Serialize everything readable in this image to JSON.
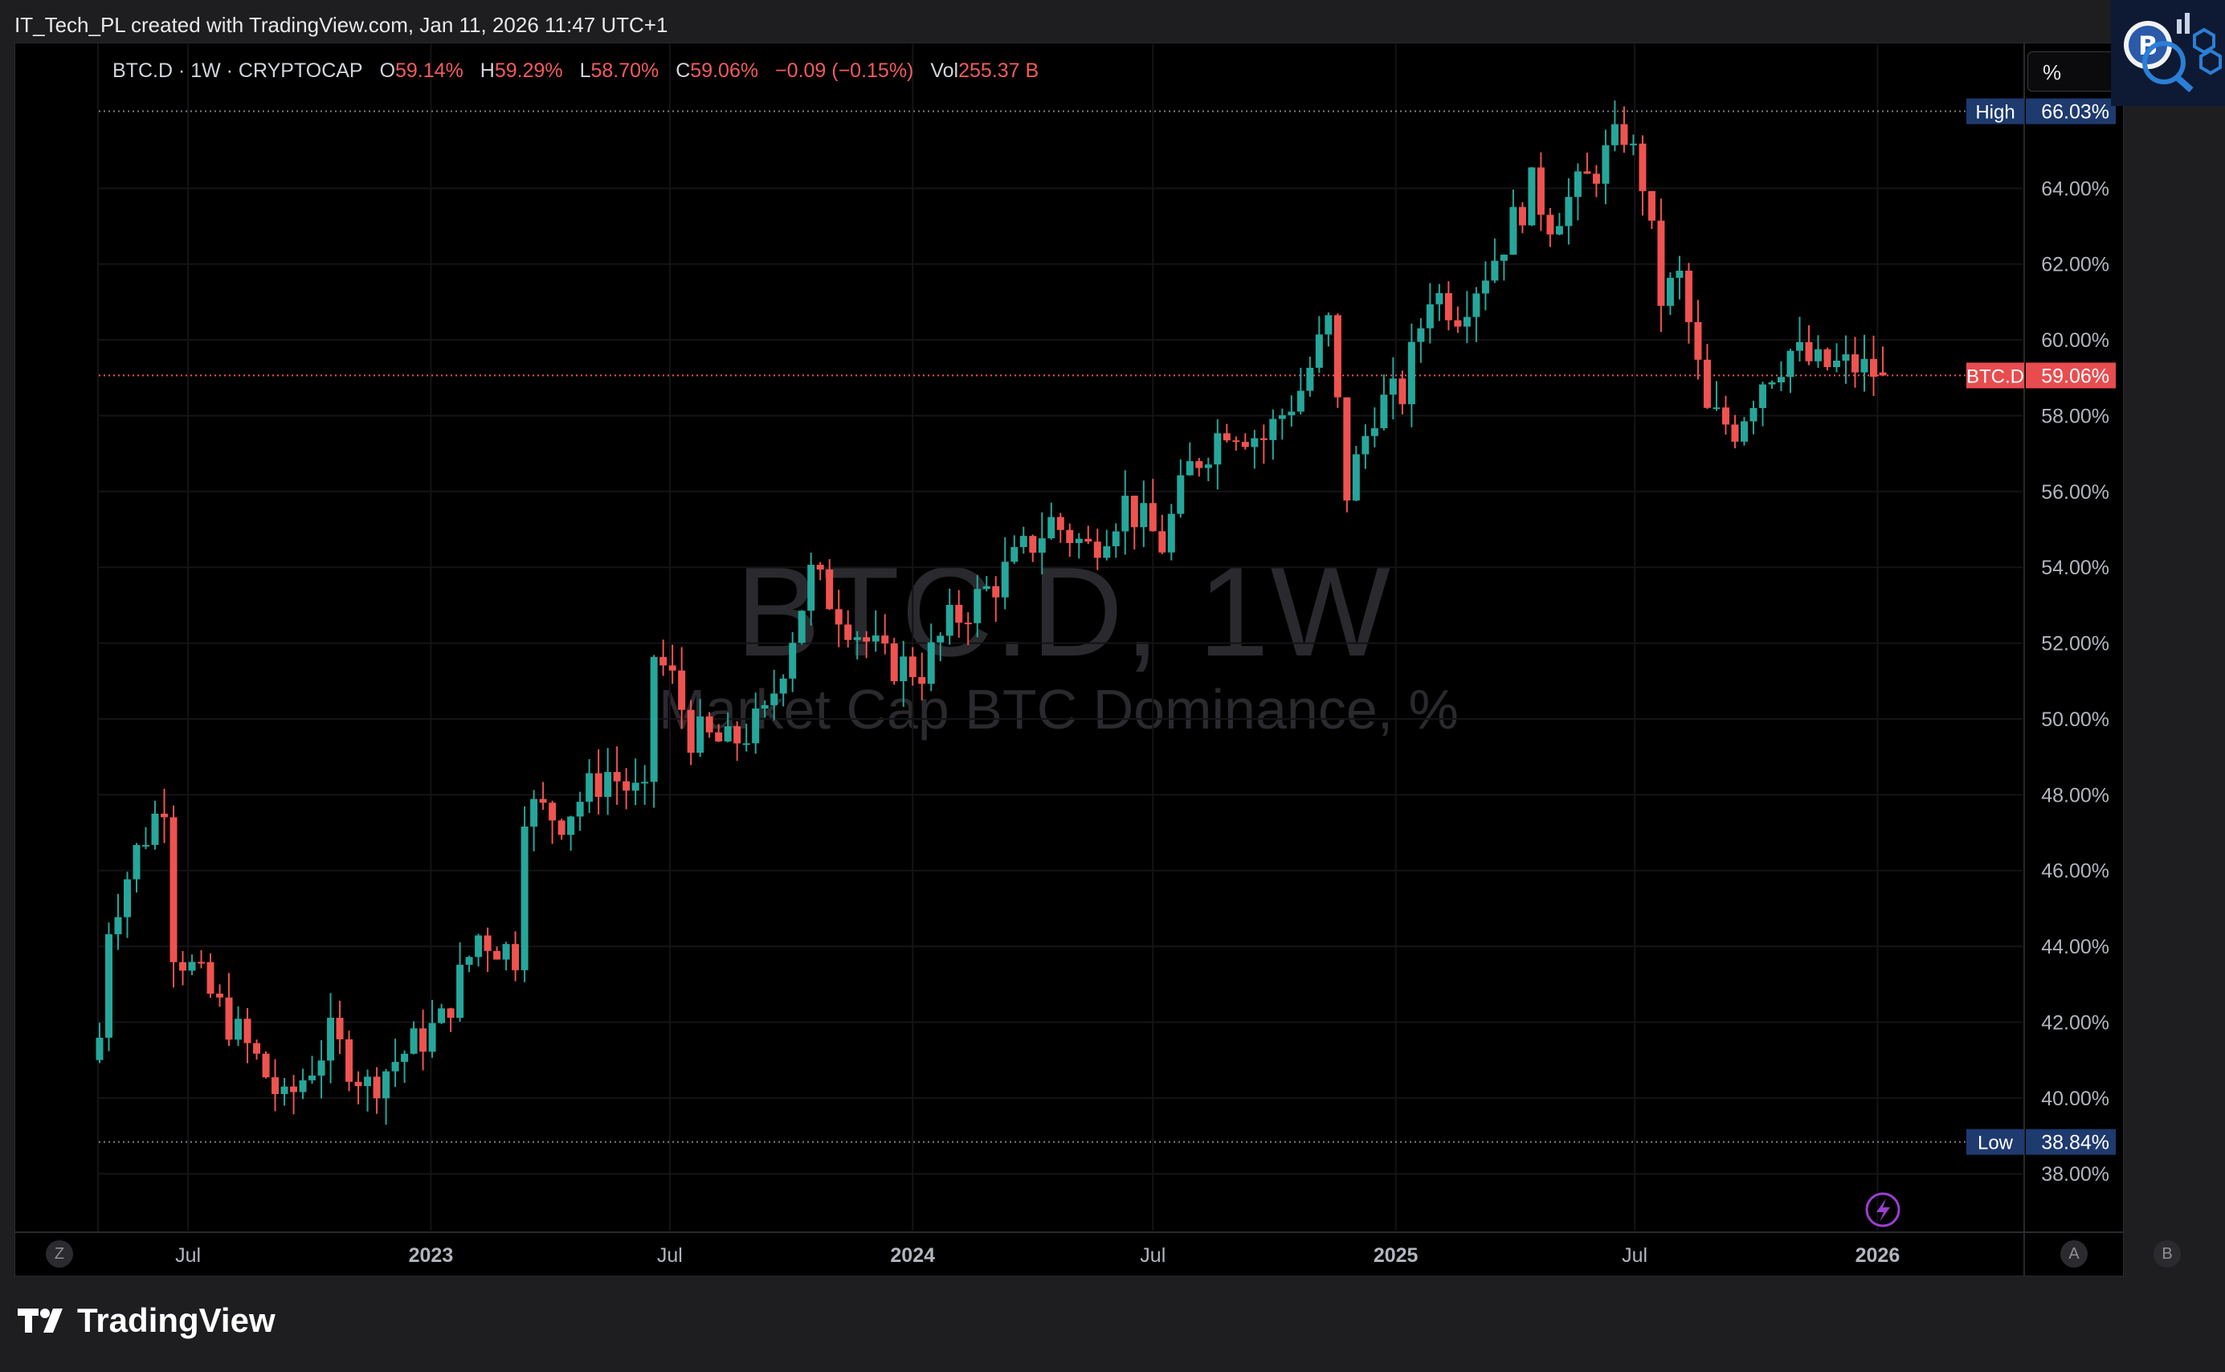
{
  "attribution": "IT_Tech_PL created with TradingView.com, Jan 11, 2026 11:47 UTC+1",
  "legend": {
    "symbol": "BTC.D · 1W · CRYPTOCAP",
    "o_label": "O",
    "o_value": "59.14%",
    "h_label": "H",
    "h_value": "59.29%",
    "l_label": "L",
    "l_value": "58.70%",
    "c_label": "C",
    "c_value": "59.06%",
    "change": "−0.09 (−0.15%)",
    "vol_label": "Vol",
    "vol_value": "255.37 B"
  },
  "scale_mode_button": "%",
  "watermark": {
    "title": "BTC.D, 1W",
    "subtitle": "Market Cap BTC Dominance, %"
  },
  "bottom_buttons": {
    "left": "Z",
    "auto": "A",
    "log": "B"
  },
  "footer_brand": "TradingView",
  "colors": {
    "up": "#26a69a",
    "down": "#ef5350",
    "price_line": "#ef5350",
    "hl_badge": "#1e3a6e"
  },
  "chart_data": {
    "type": "candlestick",
    "symbol": "BTC.D",
    "interval": "1W",
    "y_unit": "%",
    "ylim": [
      36.5,
      67.8
    ],
    "y_ticks": [
      "38.00%",
      "40.00%",
      "42.00%",
      "44.00%",
      "46.00%",
      "48.00%",
      "50.00%",
      "52.00%",
      "54.00%",
      "56.00%",
      "58.00%",
      "60.00%",
      "62.00%",
      "64.00%"
    ],
    "x_ticks": [
      {
        "label": "Jul",
        "date": "2022-07-01",
        "bold": false
      },
      {
        "label": "2023",
        "date": "2023-01-01",
        "bold": true
      },
      {
        "label": "Jul",
        "date": "2023-07-01",
        "bold": false
      },
      {
        "label": "2024",
        "date": "2024-01-01",
        "bold": true
      },
      {
        "label": "Jul",
        "date": "2024-07-01",
        "bold": false
      },
      {
        "label": "2025",
        "date": "2025-01-01",
        "bold": true
      },
      {
        "label": "Jul",
        "date": "2025-07-01",
        "bold": false
      },
      {
        "label": "2026",
        "date": "2026-01-01",
        "bold": true
      }
    ],
    "high_marker": {
      "label": "High",
      "value": 66.03,
      "text": "66.03%"
    },
    "low_marker": {
      "label": "Low",
      "value": 38.84,
      "text": "38.84%"
    },
    "last_price": {
      "label": "BTC.D",
      "value": 59.06,
      "text": "59.06%"
    },
    "anchors": [
      {
        "date": "2022-04-25",
        "close": 41.6
      },
      {
        "date": "2022-05-02",
        "close": 44.6
      },
      {
        "date": "2022-05-23",
        "close": 46.5
      },
      {
        "date": "2022-06-13",
        "close": 47.9
      },
      {
        "date": "2022-06-20",
        "close": 44.0
      },
      {
        "date": "2022-07-04",
        "close": 43.4
      },
      {
        "date": "2022-08-01",
        "close": 42.0
      },
      {
        "date": "2022-08-22",
        "close": 41.0
      },
      {
        "date": "2022-09-12",
        "close": 39.8
      },
      {
        "date": "2022-10-17",
        "close": 41.6
      },
      {
        "date": "2022-11-14",
        "close": 40.3
      },
      {
        "date": "2022-12-05",
        "close": 41.0
      },
      {
        "date": "2023-01-09",
        "close": 42.0
      },
      {
        "date": "2023-02-06",
        "close": 44.3
      },
      {
        "date": "2023-03-06",
        "close": 43.8
      },
      {
        "date": "2023-03-13",
        "close": 47.7
      },
      {
        "date": "2023-04-10",
        "close": 47.4
      },
      {
        "date": "2023-05-15",
        "close": 48.6
      },
      {
        "date": "2023-06-12",
        "close": 47.8
      },
      {
        "date": "2023-06-19",
        "close": 51.7
      },
      {
        "date": "2023-07-03",
        "close": 51.0
      },
      {
        "date": "2023-07-17",
        "close": 49.6
      },
      {
        "date": "2023-08-14",
        "close": 49.3
      },
      {
        "date": "2023-09-11",
        "close": 50.0
      },
      {
        "date": "2023-10-16",
        "close": 53.8
      },
      {
        "date": "2023-11-13",
        "close": 52.6
      },
      {
        "date": "2023-12-11",
        "close": 51.5
      },
      {
        "date": "2024-01-08",
        "close": 51.3
      },
      {
        "date": "2024-01-29",
        "close": 52.5
      },
      {
        "date": "2024-03-04",
        "close": 53.6
      },
      {
        "date": "2024-03-25",
        "close": 54.4
      },
      {
        "date": "2024-04-15",
        "close": 55.2
      },
      {
        "date": "2024-05-13",
        "close": 54.5
      },
      {
        "date": "2024-06-10",
        "close": 55.7
      },
      {
        "date": "2024-07-08",
        "close": 54.6
      },
      {
        "date": "2024-07-29",
        "close": 56.6
      },
      {
        "date": "2024-08-26",
        "close": 57.8
      },
      {
        "date": "2024-09-23",
        "close": 57.4
      },
      {
        "date": "2024-10-21",
        "close": 58.7
      },
      {
        "date": "2024-11-11",
        "close": 60.4
      },
      {
        "date": "2024-11-25",
        "close": 56.0
      },
      {
        "date": "2024-12-16",
        "close": 58.2
      },
      {
        "date": "2025-01-06",
        "close": 58.6
      },
      {
        "date": "2025-01-27",
        "close": 61.3
      },
      {
        "date": "2025-02-17",
        "close": 60.8
      },
      {
        "date": "2025-03-17",
        "close": 62.2
      },
      {
        "date": "2025-04-14",
        "close": 64.0
      },
      {
        "date": "2025-04-28",
        "close": 63.2
      },
      {
        "date": "2025-05-26",
        "close": 64.2
      },
      {
        "date": "2025-06-23",
        "close": 65.5
      },
      {
        "date": "2025-07-07",
        "close": 64.2
      },
      {
        "date": "2025-07-21",
        "close": 61.1
      },
      {
        "date": "2025-08-04",
        "close": 61.6
      },
      {
        "date": "2025-08-25",
        "close": 58.0
      },
      {
        "date": "2025-09-15",
        "close": 57.7
      },
      {
        "date": "2025-10-06",
        "close": 59.0
      },
      {
        "date": "2025-10-27",
        "close": 59.7
      },
      {
        "date": "2025-11-17",
        "close": 59.3
      },
      {
        "date": "2025-12-15",
        "close": 59.3
      },
      {
        "date": "2026-01-05",
        "close": 59.06
      }
    ]
  }
}
